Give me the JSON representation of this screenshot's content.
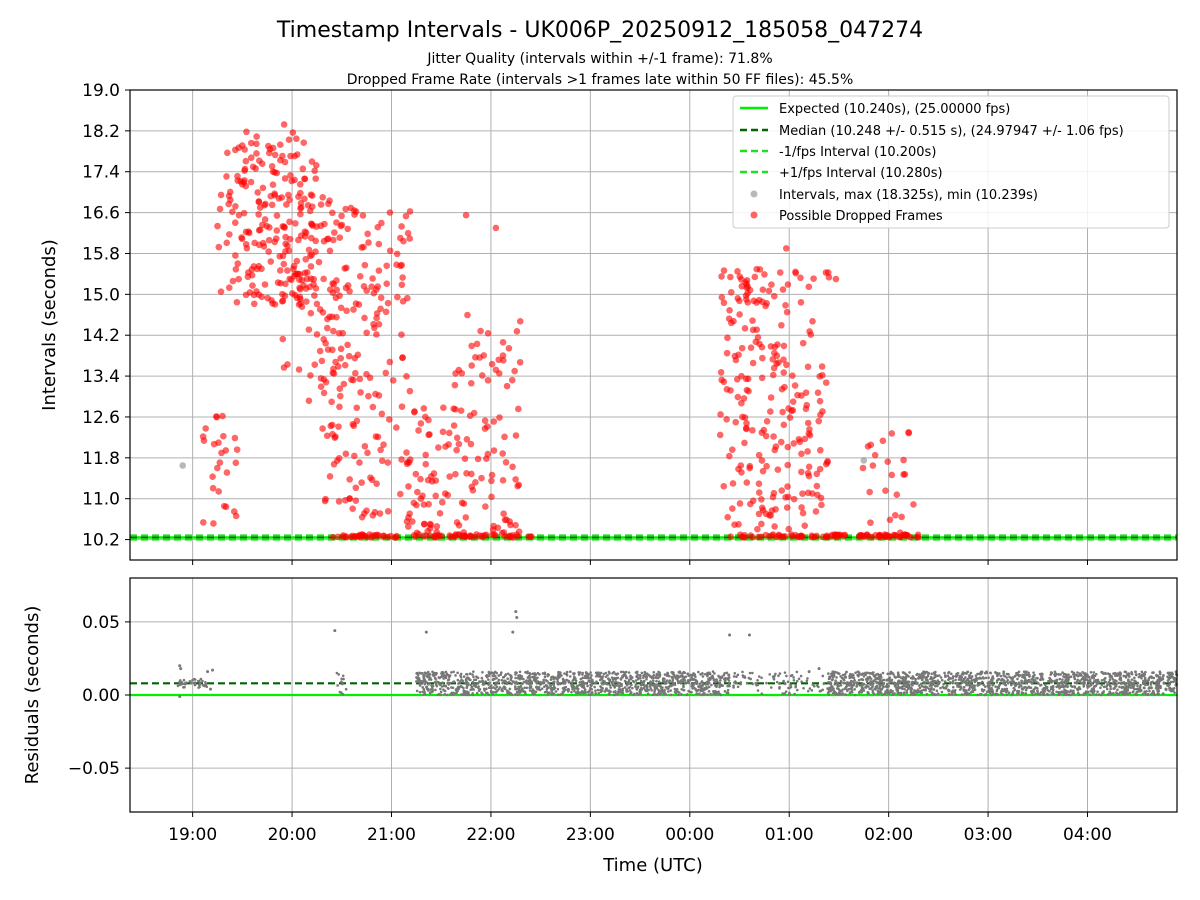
{
  "chart_data": {
    "type": "scatter",
    "title": "Timestamp Intervals - UK006P_20250912_185058_047274",
    "subtitle_lines": [
      "Jitter Quality (intervals within +/-1 frame): 71.8%",
      "Dropped Frame Rate (intervals >1 frames late within 50 FF files): 45.5%"
    ],
    "xlabel": "Time (UTC)",
    "x_tick_labels": [
      "19:00",
      "20:00",
      "21:00",
      "22:00",
      "23:00",
      "00:00",
      "01:00",
      "02:00",
      "03:00",
      "04:00"
    ],
    "x_range_hours": [
      18.37,
      28.9
    ],
    "grid": true,
    "panels": [
      {
        "name": "intervals",
        "ylabel": "Intervals (seconds)",
        "ylim": [
          9.8,
          19.0
        ],
        "y_ticks": [
          "10.2",
          "11.0",
          "11.8",
          "12.6",
          "13.4",
          "14.2",
          "15.0",
          "15.8",
          "16.6",
          "17.4",
          "18.2",
          "19.0"
        ],
        "legend_position": "top-right",
        "reference_lines": [
          {
            "label": "Expected (10.240s), (25.00000 fps)",
            "y": 10.24,
            "color": "#00ee00",
            "style": "solid"
          },
          {
            "label": "Median (10.248 +/- 0.515 s), (24.97947 +/- 1.06 fps)",
            "y": 10.248,
            "color": "#006400",
            "style": "dashed"
          },
          {
            "label": "-1/fps Interval (10.200s)",
            "y": 10.2,
            "color": "#22dd22",
            "style": "dashed"
          },
          {
            "label": "+1/fps Interval (10.280s)",
            "y": 10.28,
            "color": "#22dd22",
            "style": "dashed"
          }
        ],
        "series": [
          {
            "name": "Intervals, max (18.325s), min (10.239s)",
            "color": "#888888",
            "marker": "circle"
          },
          {
            "name": "Possible Dropped Frames",
            "color": "#ff0000",
            "marker": "circle"
          }
        ],
        "intervals_min": 10.239,
        "intervals_max": 18.325,
        "dropped_frame_clusters": [
          {
            "x_range": [
              19.1,
              19.45
            ],
            "y_range": [
              10.5,
              12.7
            ],
            "count": 26
          },
          {
            "x_range": [
              19.25,
              20.25
            ],
            "y_range": [
              14.8,
              18.2
            ],
            "count": 210
          },
          {
            "x_range": [
              19.9,
              20.5
            ],
            "y_range": [
              12.8,
              17.0
            ],
            "count": 70
          },
          {
            "x_range": [
              20.3,
              21.2
            ],
            "y_range": [
              10.6,
              16.7
            ],
            "count": 170
          },
          {
            "x_range": [
              21.15,
              21.6
            ],
            "y_range": [
              10.3,
              12.8
            ],
            "count": 55
          },
          {
            "x_range": [
              21.6,
              22.3
            ],
            "y_range": [
              10.3,
              14.6
            ],
            "count": 90
          },
          {
            "x_range": [
              20.4,
              22.45
            ],
            "y_range": [
              10.24,
              10.3
            ],
            "count": 80
          },
          {
            "x_range": [
              24.3,
              25.4
            ],
            "y_range": [
              10.4,
              15.5
            ],
            "count": 230
          },
          {
            "x_range": [
              24.4,
              25.6
            ],
            "y_range": [
              10.24,
              10.3
            ],
            "count": 50
          },
          {
            "x_range": [
              25.7,
              26.3
            ],
            "y_range": [
              10.3,
              12.4
            ],
            "count": 22
          },
          {
            "x_range": [
              25.7,
              26.3
            ],
            "y_range": [
              10.24,
              10.3
            ],
            "count": 40
          }
        ],
        "sample_points": [
          {
            "x": 18.9,
            "y": 11.65,
            "s": "intervals"
          },
          {
            "x": 25.75,
            "y": 11.75,
            "s": "intervals"
          },
          {
            "x": 19.92,
            "y": 18.325,
            "s": "dropped"
          },
          {
            "x": 22.05,
            "y": 16.3,
            "s": "dropped"
          },
          {
            "x": 24.97,
            "y": 15.9,
            "s": "dropped"
          },
          {
            "x": 25.47,
            "y": 15.3,
            "s": "dropped"
          },
          {
            "x": 24.48,
            "y": 15.45,
            "s": "dropped"
          },
          {
            "x": 21.75,
            "y": 16.55,
            "s": "dropped"
          },
          {
            "x": 26.2,
            "y": 12.3,
            "s": "dropped"
          }
        ]
      },
      {
        "name": "residuals",
        "ylabel": "Residuals (seconds)",
        "ylim": [
          -0.08,
          0.08
        ],
        "y_ticks": [
          "−0.05",
          "0.00",
          "0.05"
        ],
        "reference_lines": [
          {
            "y": 0.0,
            "color": "#00ee00",
            "style": "solid"
          },
          {
            "y": 0.008,
            "color": "#006400",
            "style": "dashed"
          }
        ],
        "series": [
          {
            "name": "residuals",
            "color": "#777777"
          }
        ],
        "band_segments": [
          {
            "x_range": [
              18.85,
              19.15
            ],
            "y_range": [
              0.005,
              0.011
            ],
            "count": 40
          },
          {
            "x_range": [
              20.45,
              20.55
            ],
            "y_range": [
              0.0,
              0.016
            ],
            "count": 12
          },
          {
            "x_range": [
              21.25,
              22.1
            ],
            "y_range": [
              0.0,
              0.016
            ],
            "count": 300
          },
          {
            "x_range": [
              22.1,
              24.4
            ],
            "y_range": [
              0.0,
              0.016
            ],
            "count": 900
          },
          {
            "x_range": [
              24.4,
              25.35
            ],
            "y_range": [
              0.0,
              0.016
            ],
            "count": 90
          },
          {
            "x_range": [
              25.38,
              28.9
            ],
            "y_range": [
              0.0,
              0.016
            ],
            "count": 1500
          }
        ],
        "outliers": [
          {
            "x": 18.87,
            "y": 0.02
          },
          {
            "x": 18.88,
            "y": 0.018
          },
          {
            "x": 18.87,
            "y": -0.001
          },
          {
            "x": 19.15,
            "y": 0.016
          },
          {
            "x": 19.2,
            "y": 0.017
          },
          {
            "x": 19.18,
            "y": 0.004
          },
          {
            "x": 20.43,
            "y": 0.044
          },
          {
            "x": 21.35,
            "y": 0.043
          },
          {
            "x": 22.22,
            "y": 0.043
          },
          {
            "x": 22.25,
            "y": 0.057
          },
          {
            "x": 22.26,
            "y": 0.053
          },
          {
            "x": 24.4,
            "y": 0.041
          },
          {
            "x": 24.6,
            "y": 0.041
          },
          {
            "x": 25.2,
            "y": 0.016
          },
          {
            "x": 25.3,
            "y": 0.018
          }
        ]
      }
    ]
  }
}
